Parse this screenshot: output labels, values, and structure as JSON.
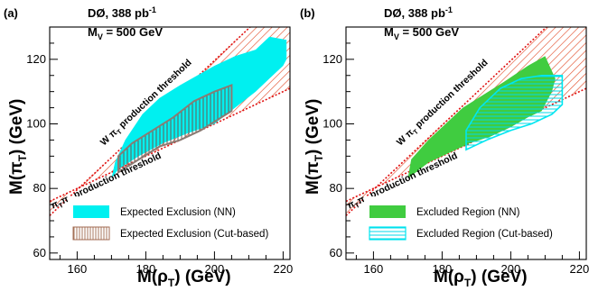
{
  "chart_data": [
    {
      "type": "area",
      "panel_label": "(a)",
      "experiment": "DØ, 388 pb",
      "experiment_sup": "-1",
      "mass_main": "M",
      "mass_sub": "V",
      "mass_value": "= 500 GeV",
      "xlabel": "M(ρ",
      "xlabel_sub": "T",
      "xlabel_unit": ") (GeV)",
      "ylabel": "M(π",
      "ylabel_sub": "T",
      "ylabel_unit": ") (GeV)",
      "xlim": [
        152,
        222
      ],
      "ylim": [
        58,
        130
      ],
      "xticks": [
        "160",
        "180",
        "200",
        "220"
      ],
      "yticks": [
        "60",
        "80",
        "100",
        "120"
      ],
      "threshold_upper_label": "W π_T production threshold",
      "threshold_lower_label": "π_T π_T production threshold",
      "threshold_upper_parts": [
        "W π",
        "T",
        " production threshold"
      ],
      "threshold_lower_parts": [
        "π",
        "T",
        "π",
        "T",
        " production threshold"
      ],
      "threshold_upper_line": {
        "x": [
          152,
          222
        ],
        "y": [
          71.6,
          141.6
        ]
      },
      "threshold_lower_line": {
        "x": [
          152,
          222
        ],
        "y": [
          76,
          111
        ]
      },
      "legend": [
        "Expected Exclusion (NN)",
        "Expected Exclusion (Cut-based)"
      ],
      "series": [
        {
          "name": "Expected Exclusion (NN)",
          "color": "#00f0f0",
          "polygon": [
            [
              170,
              83
            ],
            [
              172,
              86
            ],
            [
              178,
              90
            ],
            [
              185,
              94
            ],
            [
              192,
              97
            ],
            [
              200,
              100
            ],
            [
              206,
              105
            ],
            [
              212,
              110
            ],
            [
              216,
              114
            ],
            [
              220,
              118
            ],
            [
              221,
              120
            ],
            [
              221,
              126
            ],
            [
              216,
              127
            ],
            [
              212,
              123
            ],
            [
              206,
              121
            ],
            [
              200,
              118
            ],
            [
              195,
              115
            ],
            [
              190,
              112
            ],
            [
              184,
              108
            ],
            [
              179,
              103
            ],
            [
              174,
              95
            ],
            [
              171,
              88
            ]
          ]
        },
        {
          "name": "Expected Exclusion (Cut-based)",
          "color": "#8b7b73",
          "polygon": [
            [
              172,
              85
            ],
            [
              178,
              89
            ],
            [
              184,
              93
            ],
            [
              190,
              95
            ],
            [
              196,
              98
            ],
            [
              202,
              102
            ],
            [
              205,
              104
            ],
            [
              205,
              112
            ],
            [
              200,
              110
            ],
            [
              194,
              107
            ],
            [
              188,
              102
            ],
            [
              182,
              98
            ],
            [
              176,
              94
            ],
            [
              172,
              90
            ]
          ]
        }
      ]
    },
    {
      "type": "area",
      "panel_label": "(b)",
      "experiment": "DØ, 388 pb",
      "experiment_sup": "-1",
      "mass_main": "M",
      "mass_sub": "V",
      "mass_value": "= 500 GeV",
      "xlabel": "M(ρ",
      "xlabel_sub": "T",
      "xlabel_unit": ") (GeV)",
      "ylabel": "M(π",
      "ylabel_sub": "T",
      "ylabel_unit": ") (GeV)",
      "xlim": [
        152,
        222
      ],
      "ylim": [
        58,
        130
      ],
      "xticks": [
        "160",
        "180",
        "200",
        "220"
      ],
      "yticks": [
        "60",
        "80",
        "100",
        "120"
      ],
      "threshold_upper_label": "W π_T production threshold",
      "threshold_lower_label": "π_T π_T production threshold",
      "threshold_upper_parts": [
        "W π",
        "T",
        " production threshold"
      ],
      "threshold_lower_parts": [
        "π",
        "T",
        "π",
        "T",
        " production threshold"
      ],
      "threshold_upper_line": {
        "x": [
          152,
          222
        ],
        "y": [
          71.6,
          141.6
        ]
      },
      "threshold_lower_line": {
        "x": [
          152,
          222
        ],
        "y": [
          76,
          111
        ]
      },
      "legend": [
        "Excluded Region (NN)",
        "Excluded Region (Cut-based)"
      ],
      "series": [
        {
          "name": "Excluded Region (NN)",
          "color": "#40cc40",
          "polygon": [
            [
              170,
              83
            ],
            [
              176,
              88
            ],
            [
              182,
              91
            ],
            [
              188,
              94
            ],
            [
              194,
              96
            ],
            [
              200,
              99
            ],
            [
              205,
              102
            ],
            [
              209,
              104
            ],
            [
              212,
              110
            ],
            [
              213,
              114
            ],
            [
              210,
              121
            ],
            [
              205,
              118
            ],
            [
              198,
              113
            ],
            [
              192,
              109
            ],
            [
              186,
              105
            ],
            [
              180,
              99
            ],
            [
              176,
              95
            ],
            [
              171,
              89
            ]
          ]
        },
        {
          "name": "Excluded Region (Cut-based)",
          "color": "#00e6f0",
          "polygon": [
            [
              187,
              92
            ],
            [
              193,
              95
            ],
            [
              200,
              98
            ],
            [
              206,
              100
            ],
            [
              212,
              103
            ],
            [
              215,
              106
            ],
            [
              215,
              115
            ],
            [
              209,
              115
            ],
            [
              203,
              114
            ],
            [
              197,
              111
            ],
            [
              191,
              105
            ],
            [
              187,
              98
            ]
          ]
        }
      ]
    }
  ]
}
